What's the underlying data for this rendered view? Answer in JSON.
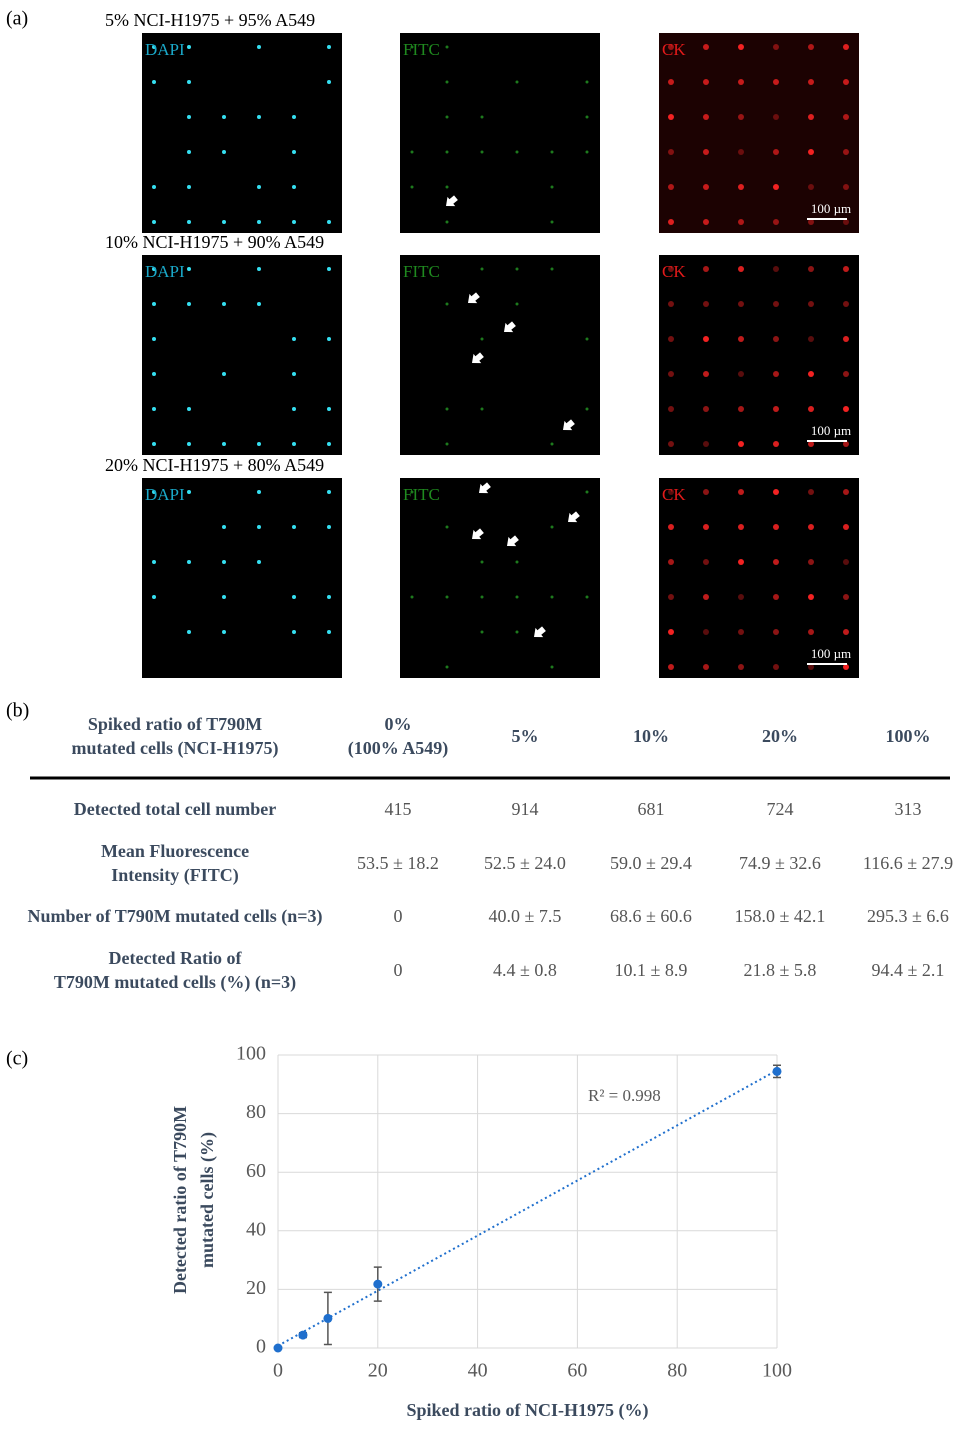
{
  "panel_a": {
    "label": "(a)",
    "rows": [
      {
        "title": "5% NCI-H1975 + 95% A549",
        "channels": [
          "DAPI",
          "FITC",
          "CK"
        ],
        "scale_bar": "100 µm"
      },
      {
        "title": "10% NCI-H1975 + 90% A549",
        "channels": [
          "DAPI",
          "FITC",
          "CK"
        ],
        "scale_bar": "100 µm"
      },
      {
        "title": "20% NCI-H1975 + 80% A549",
        "channels": [
          "DAPI",
          "FITC",
          "CK"
        ],
        "scale_bar": "100 µm"
      }
    ]
  },
  "table": {
    "label": "(b)",
    "header": [
      [
        "Spiked ratio of T790M",
        "mutated cells (NCI-H1975)"
      ],
      [
        "0%",
        "(100% A549)"
      ],
      [
        "5%"
      ],
      [
        "10%"
      ],
      [
        "20%"
      ],
      [
        "100%"
      ]
    ],
    "rows": [
      {
        "label": [
          "Detected total cell number"
        ],
        "cells": [
          "415",
          "914",
          "681",
          "724",
          "313"
        ]
      },
      {
        "label": [
          "Mean Fluorescence",
          "Intensity (FITC)"
        ],
        "cells": [
          "53.5 ± 18.2",
          "52.5 ± 24.0",
          "59.0 ± 29.4",
          "74.9 ± 32.6",
          "116.6 ± 27.9"
        ]
      },
      {
        "label": [
          "Number of T790M mutated cells (n=3)"
        ],
        "cells": [
          "0",
          "40.0 ± 7.5",
          "68.6 ± 60.6",
          "158.0 ± 42.1",
          "295.3 ± 6.6"
        ]
      },
      {
        "label": [
          "Detected Ratio of",
          "T790M mutated cells (%) (n=3)"
        ],
        "cells": [
          "0",
          "4.4 ± 0.8",
          "10.1 ± 8.9",
          "21.8 ± 5.8",
          "94.4 ± 2.1"
        ]
      }
    ]
  },
  "chart_data": {
    "type": "scatter",
    "label": "(c)",
    "xlabel": "Spiked ratio of NCI-H1975 (%)",
    "ylabel": [
      "Detected ratio of T790M",
      "mutated cells (%)"
    ],
    "x": [
      0,
      5,
      10,
      20,
      100
    ],
    "values": [
      0,
      4.4,
      10.1,
      21.8,
      94.4
    ],
    "errors": [
      0,
      0.8,
      8.9,
      5.8,
      2.1
    ],
    "color": "#1f6fcd",
    "trendline": "linear",
    "annotation": "R² = 0.998",
    "xlim": [
      0,
      100
    ],
    "xticks": [
      0,
      20,
      40,
      60,
      80,
      100
    ],
    "ylim": [
      0,
      100
    ],
    "yticks": [
      0,
      20,
      40,
      60,
      80,
      100
    ],
    "grid": true
  }
}
